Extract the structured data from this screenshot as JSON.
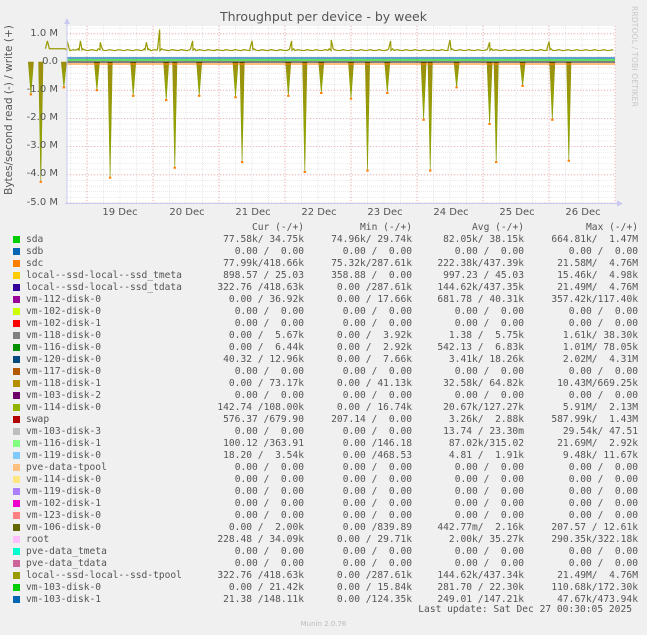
{
  "title": "Throughput per device - by week",
  "watermark": "RRDTOOL / TOBI OETIKER",
  "y_axis_label": "Bytes/second read (-) / write (+)",
  "y_ticks": [
    "1.0 M",
    "0.0",
    "-1.0 M",
    "-2.0 M",
    "-3.0 M",
    "-4.0 M",
    "-5.0 M"
  ],
  "x_ticks": [
    "19 Dec",
    "20 Dec",
    "21 Dec",
    "22 Dec",
    "23 Dec",
    "24 Dec",
    "25 Dec",
    "26 Dec"
  ],
  "legend_header": {
    "cur": "Cur (-/+)",
    "min": "Min (-/+)",
    "avg": "Avg (-/+)",
    "max": "Max (-/+)"
  },
  "legend": [
    {
      "name": "sda",
      "color": "#00cc00",
      "cur": "77.58k/ 34.75k",
      "min": "74.96k/ 29.74k",
      "avg": "82.05k/ 38.15k",
      "max": "664.81k/  1.47M"
    },
    {
      "name": "sdb",
      "color": "#0066b3",
      "cur": "0.00 /  0.00",
      "min": "0.00 /  0.00",
      "avg": "0.00 /  0.00",
      "max": "0.00 /  0.00"
    },
    {
      "name": "sdc",
      "color": "#ff8000",
      "cur": "77.99k/418.66k",
      "min": "75.32k/287.61k",
      "avg": "222.38k/437.39k",
      "max": "21.58M/  4.76M"
    },
    {
      "name": "local--ssd-local--ssd_tmeta",
      "color": "#ffcc00",
      "cur": "898.57 / 25.03",
      "min": "358.88 /  0.00",
      "avg": "997.23 / 45.03",
      "max": "15.46k/  4.98k"
    },
    {
      "name": "local--ssd-local--ssd_tdata",
      "color": "#330099",
      "cur": "322.76 /418.63k",
      "min": "0.00 /287.61k",
      "avg": "144.62k/437.35k",
      "max": "21.49M/  4.76M"
    },
    {
      "name": "vm-112-disk-0",
      "color": "#990099",
      "cur": "0.00 / 36.92k",
      "min": "0.00 / 17.66k",
      "avg": "681.78 / 40.31k",
      "max": "357.42k/117.40k"
    },
    {
      "name": "vm-102-disk-0",
      "color": "#ccff00",
      "cur": "0.00 /  0.00",
      "min": "0.00 /  0.00",
      "avg": "0.00 /  0.00",
      "max": "0.00 /  0.00"
    },
    {
      "name": "vm-102-disk-1",
      "color": "#ff0000",
      "cur": "0.00 /  0.00",
      "min": "0.00 /  0.00",
      "avg": "0.00 /  0.00",
      "max": "0.00 /  0.00"
    },
    {
      "name": "vm-118-disk-0",
      "color": "#808080",
      "cur": "0.00 /  5.67k",
      "min": "0.00 /  3.92k",
      "avg": "1.38 /  5.75k",
      "max": "1.61k/ 38.30k"
    },
    {
      "name": "vm-116-disk-0",
      "color": "#008f00",
      "cur": "0.00 /  6.44k",
      "min": "0.00 /  2.92k",
      "avg": "542.13 /  6.83k",
      "max": "1.01M/ 78.05k"
    },
    {
      "name": "vm-120-disk-0",
      "color": "#00487d",
      "cur": "40.32 / 12.96k",
      "min": "0.00 /  7.66k",
      "avg": "3.41k/ 18.26k",
      "max": "2.02M/  4.31M"
    },
    {
      "name": "vm-117-disk-0",
      "color": "#b35a00",
      "cur": "0.00 /  0.00",
      "min": "0.00 /  0.00",
      "avg": "0.00 /  0.00",
      "max": "0.00 /  0.00"
    },
    {
      "name": "vm-118-disk-1",
      "color": "#b38f00",
      "cur": "0.00 / 73.17k",
      "min": "0.00 / 41.13k",
      "avg": "32.58k/ 64.82k",
      "max": "10.43M/669.25k"
    },
    {
      "name": "vm-103-disk-2",
      "color": "#6b006b",
      "cur": "0.00 /  0.00",
      "min": "0.00 /  0.00",
      "avg": "0.00 /  0.00",
      "max": "0.00 /  0.00"
    },
    {
      "name": "vm-114-disk-0",
      "color": "#8fb300",
      "cur": "142.74 /108.00k",
      "min": "0.00 / 16.74k",
      "avg": "20.67k/127.27k",
      "max": "5.91M/  2.13M"
    },
    {
      "name": "swap",
      "color": "#b30000",
      "cur": "576.37 /679.90",
      "min": "207.14 /  0.00",
      "avg": "3.26k/  2.88k",
      "max": "587.99k/  1.43M"
    },
    {
      "name": "vm-103-disk-3",
      "color": "#bebebe",
      "cur": "0.00 /  0.00",
      "min": "0.00 /  0.00",
      "avg": "13.74 / 23.30m",
      "max": "29.54k/ 47.51"
    },
    {
      "name": "vm-116-disk-1",
      "color": "#80ff80",
      "cur": "100.12 /363.91",
      "min": "0.00 /146.18",
      "avg": "87.02k/315.02",
      "max": "21.69M/  2.92k"
    },
    {
      "name": "vm-119-disk-0",
      "color": "#80c9ff",
      "cur": "18.20 /  3.54k",
      "min": "0.00 /468.53",
      "avg": "4.81 /  1.91k",
      "max": "9.48k/ 11.67k"
    },
    {
      "name": "pve-data-tpool",
      "color": "#ffc080",
      "cur": "0.00 /  0.00",
      "min": "0.00 /  0.00",
      "avg": "0.00 /  0.00",
      "max": "0.00 /  0.00"
    },
    {
      "name": "vm-114-disk-0",
      "color": "#ffe680",
      "cur": "0.00 /  0.00",
      "min": "0.00 /  0.00",
      "avg": "0.00 /  0.00",
      "max": "0.00 /  0.00"
    },
    {
      "name": "vm-119-disk-0",
      "color": "#aa80ff",
      "cur": "0.00 /  0.00",
      "min": "0.00 /  0.00",
      "avg": "0.00 /  0.00",
      "max": "0.00 /  0.00"
    },
    {
      "name": "vm-102-disk-1",
      "color": "#ee00cc",
      "cur": "0.00 /  0.00",
      "min": "0.00 /  0.00",
      "avg": "0.00 /  0.00",
      "max": "0.00 /  0.00"
    },
    {
      "name": "vm-123-disk-0",
      "color": "#ff8080",
      "cur": "0.00 /  0.00",
      "min": "0.00 /  0.00",
      "avg": "0.00 /  0.00",
      "max": "0.00 /  0.00"
    },
    {
      "name": "vm-106-disk-0",
      "color": "#666600",
      "cur": "0.00 /  2.00k",
      "min": "0.00 /839.89",
      "avg": "442.77m/  2.16k",
      "max": "207.57 / 12.61k"
    },
    {
      "name": "root",
      "color": "#ffbfff",
      "cur": "228.48 / 34.09k",
      "min": "0.00 / 29.71k",
      "avg": "2.00k/ 35.27k",
      "max": "290.35k/322.18k"
    },
    {
      "name": "pve-data_tmeta",
      "color": "#00ffcc",
      "cur": "0.00 /  0.00",
      "min": "0.00 /  0.00",
      "avg": "0.00 /  0.00",
      "max": "0.00 /  0.00"
    },
    {
      "name": "pve-data_tdata",
      "color": "#cc6699",
      "cur": "0.00 /  0.00",
      "min": "0.00 /  0.00",
      "avg": "0.00 /  0.00",
      "max": "0.00 /  0.00"
    },
    {
      "name": "local--ssd-local--ssd-tpool",
      "color": "#999900",
      "cur": "322.76 /418.63k",
      "min": "0.00 /287.61k",
      "avg": "144.62k/437.34k",
      "max": "21.49M/  4.76M"
    },
    {
      "name": "vm-103-disk-0",
      "color": "#00cc00",
      "cur": "0.00 / 21.42k",
      "min": "0.00 / 15.84k",
      "avg": "281.70 / 22.30k",
      "max": "110.68k/172.30k"
    },
    {
      "name": "vm-103-disk-1",
      "color": "#0066b3",
      "cur": "21.38 /148.11k",
      "min": "0.00 /124.35k",
      "avg": "249.01 /147.21k",
      "max": "47.67k/473.94k"
    }
  ],
  "last_update": "Last update: Sat Dec 27 00:30:05 2025",
  "version": "Munin 2.0.76",
  "chart_data": {
    "type": "area",
    "title": "Throughput per device - by week",
    "xlabel": "",
    "ylabel": "Bytes/second read (-) / write (+)",
    "ylim": [
      -5000000,
      1200000
    ],
    "y_ticks": [
      1000000,
      0,
      -1000000,
      -2000000,
      -3000000,
      -4000000,
      -5000000
    ],
    "x_ticks": [
      "19 Dec",
      "20 Dec",
      "21 Dec",
      "22 Dec",
      "23 Dec",
      "24 Dec",
      "25 Dec",
      "26 Dec"
    ],
    "grid": true,
    "legend_position": "bottom",
    "write_baseline_M": 0.42,
    "write_peaks": [
      {
        "day": 18.4,
        "value_M": 0.75
      },
      {
        "day": 18.7,
        "value_M": 0.75
      },
      {
        "day": 18.9,
        "value_M": 0.75
      },
      {
        "day": 19.2,
        "value_M": 0.7
      },
      {
        "day": 19.9,
        "value_M": 0.7
      },
      {
        "day": 20.1,
        "value_M": 1.15
      },
      {
        "day": 20.6,
        "value_M": 0.75
      },
      {
        "day": 21.5,
        "value_M": 0.75
      },
      {
        "day": 22.1,
        "value_M": 0.75
      },
      {
        "day": 22.7,
        "value_M": 0.78
      },
      {
        "day": 23.6,
        "value_M": 0.75
      },
      {
        "day": 24.5,
        "value_M": 0.78
      },
      {
        "day": 25.1,
        "value_M": 0.7
      },
      {
        "day": 26.0,
        "value_M": 0.72
      }
    ],
    "read_spikes": [
      {
        "day": 18.15,
        "value_M": -1.15
      },
      {
        "day": 18.3,
        "value_M": -4.25
      },
      {
        "day": 18.65,
        "value_M": -0.9
      },
      {
        "day": 19.15,
        "value_M": -1.0
      },
      {
        "day": 19.35,
        "value_M": -4.1
      },
      {
        "day": 19.7,
        "value_M": -1.2
      },
      {
        "day": 20.2,
        "value_M": -1.35
      },
      {
        "day": 20.33,
        "value_M": -3.75
      },
      {
        "day": 20.7,
        "value_M": -1.2
      },
      {
        "day": 21.25,
        "value_M": -1.25
      },
      {
        "day": 21.35,
        "value_M": -3.55
      },
      {
        "day": 22.05,
        "value_M": -1.2
      },
      {
        "day": 22.3,
        "value_M": -3.9
      },
      {
        "day": 22.55,
        "value_M": -1.1
      },
      {
        "day": 23.0,
        "value_M": -1.3
      },
      {
        "day": 23.25,
        "value_M": -3.85
      },
      {
        "day": 23.55,
        "value_M": -1.1
      },
      {
        "day": 24.1,
        "value_M": -2.05
      },
      {
        "day": 24.2,
        "value_M": -3.85
      },
      {
        "day": 24.6,
        "value_M": -0.9
      },
      {
        "day": 25.1,
        "value_M": -2.2
      },
      {
        "day": 25.2,
        "value_M": -3.55
      },
      {
        "day": 25.6,
        "value_M": -0.85
      },
      {
        "day": 26.05,
        "value_M": -2.05
      },
      {
        "day": 26.3,
        "value_M": -3.5
      }
    ]
  }
}
